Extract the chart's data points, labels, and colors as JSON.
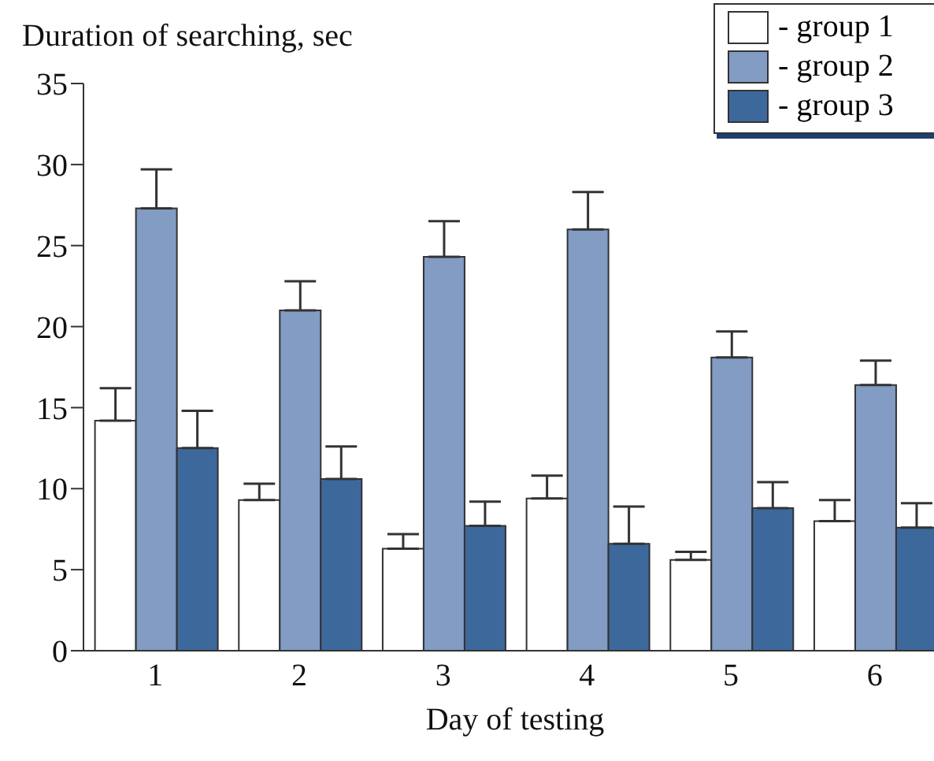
{
  "chart_data": {
    "type": "bar",
    "ylabel": "Duration of searching, sec",
    "xlabel": "Day of testing",
    "categories": [
      "1",
      "2",
      "3",
      "4",
      "5",
      "6"
    ],
    "series": [
      {
        "name": "- group 1",
        "color": "#ffffff",
        "values": [
          14.2,
          9.3,
          6.3,
          9.4,
          5.6,
          8.0
        ],
        "errors": [
          [
            14.2,
            16.2
          ],
          [
            9.3,
            10.3
          ],
          [
            6.3,
            7.2
          ],
          [
            9.4,
            10.8
          ],
          [
            5.6,
            6.1
          ],
          [
            8.0,
            9.3
          ]
        ]
      },
      {
        "name": "- group 2",
        "color": "#829cc3",
        "values": [
          27.3,
          21.0,
          24.3,
          26.0,
          18.1,
          16.4
        ],
        "errors": [
          [
            27.3,
            29.7
          ],
          [
            21.0,
            22.8
          ],
          [
            24.3,
            26.5
          ],
          [
            26.0,
            28.3
          ],
          [
            18.1,
            19.7
          ],
          [
            16.4,
            17.9
          ]
        ]
      },
      {
        "name": "- group 3",
        "color": "#3d689c",
        "values": [
          12.5,
          10.6,
          7.7,
          6.6,
          8.8,
          7.6
        ],
        "errors": [
          [
            12.5,
            14.8
          ],
          [
            10.6,
            12.6
          ],
          [
            7.7,
            9.2
          ],
          [
            6.6,
            8.9
          ],
          [
            8.8,
            10.4
          ],
          [
            7.6,
            9.1
          ]
        ]
      }
    ],
    "ylim": [
      0,
      35
    ],
    "yticks": [
      0,
      5,
      10,
      15,
      20,
      25,
      30,
      35
    ],
    "grid": false,
    "legend": "top right"
  }
}
